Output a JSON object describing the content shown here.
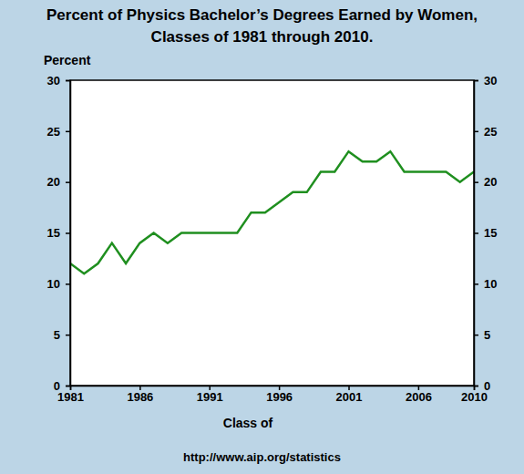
{
  "chart_data": {
    "type": "line",
    "title": [
      "Percent of Physics Bachelor’s Degrees Earned by Women,",
      "Classes of 1981 through 2010."
    ],
    "y_label": "Percent",
    "x_label": "Class of",
    "source": "http://www.aip.org/statistics",
    "x": [
      1981,
      1982,
      1983,
      1984,
      1985,
      1986,
      1987,
      1988,
      1989,
      1990,
      1991,
      1992,
      1993,
      1994,
      1995,
      1996,
      1997,
      1998,
      1999,
      2000,
      2001,
      2002,
      2003,
      2004,
      2005,
      2006,
      2007,
      2008,
      2009,
      2010
    ],
    "values": [
      12,
      11,
      12,
      14,
      12,
      14,
      15,
      14,
      15,
      15,
      15,
      15,
      15,
      17,
      17,
      18,
      19,
      19,
      21,
      21,
      23,
      22,
      22,
      23,
      21,
      21,
      21,
      21,
      20,
      21
    ],
    "color": "#1f8f1f",
    "xlim": [
      1981,
      2010
    ],
    "xticks": [
      1981,
      1986,
      1991,
      1996,
      2001,
      2006,
      2010
    ],
    "ylim": [
      0,
      30
    ],
    "yticks": [
      0,
      5,
      10,
      15,
      20,
      25,
      30
    ],
    "grid": false
  }
}
